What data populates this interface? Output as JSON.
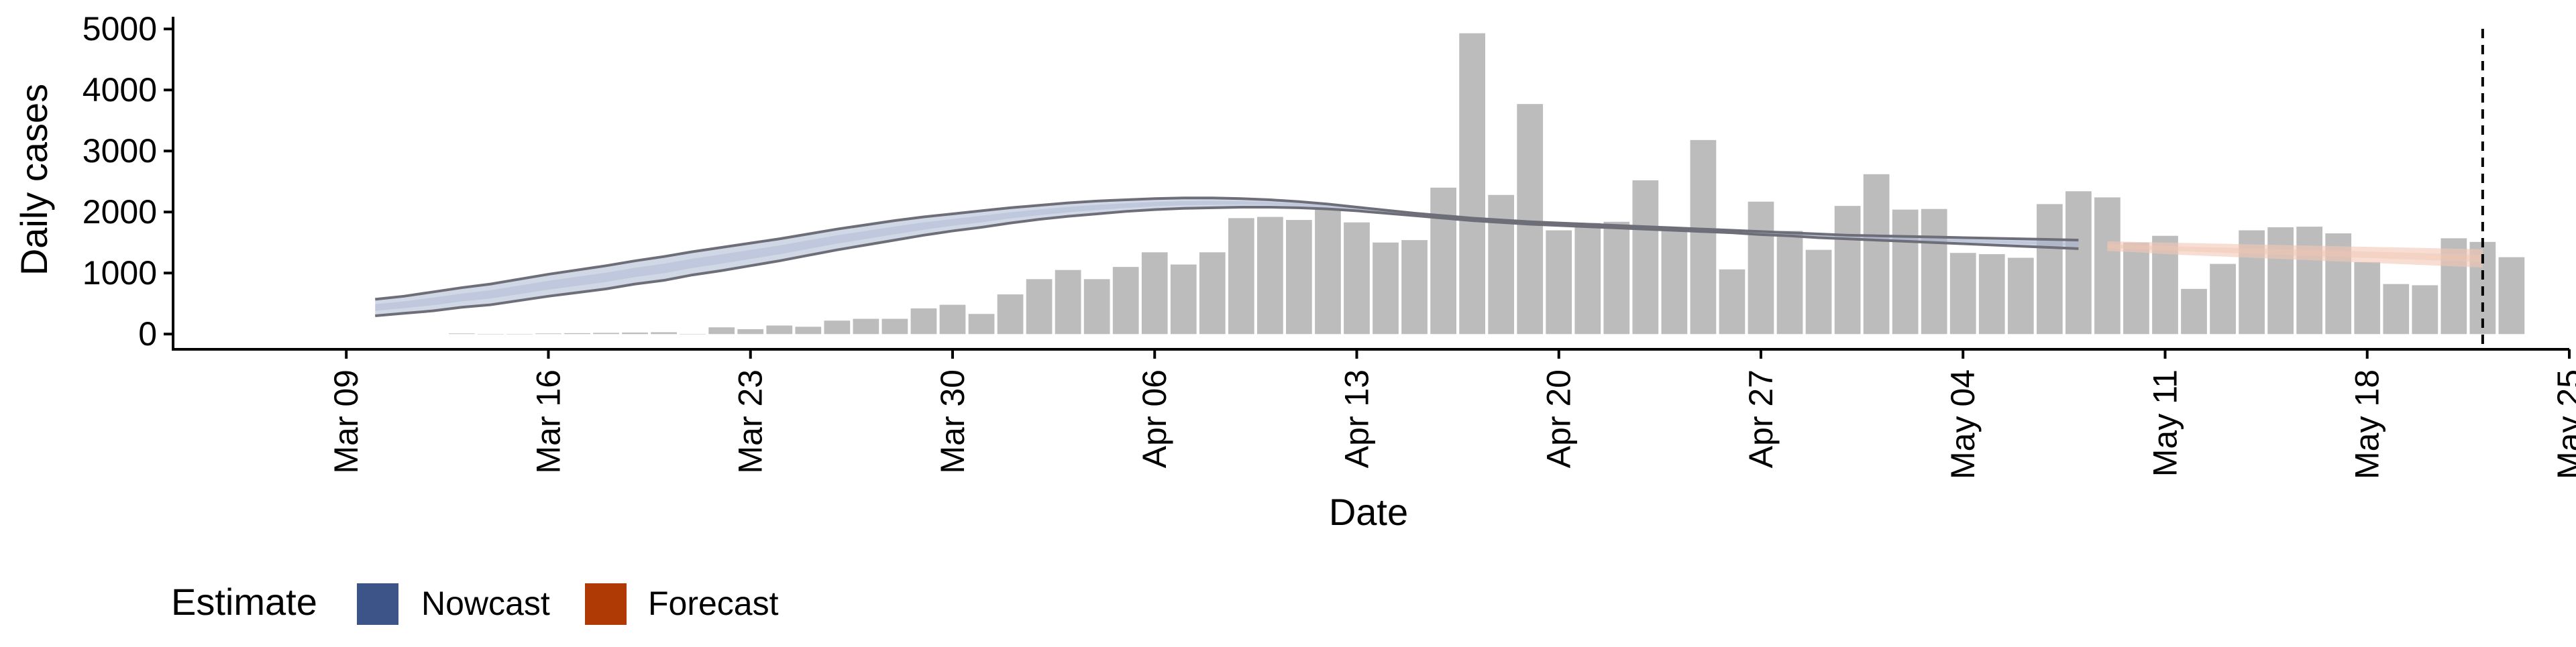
{
  "chart_data": {
    "type": "bar",
    "xlabel": "Date",
    "ylabel": "Daily cases",
    "ylim": [
      -250,
      5200
    ],
    "xlim": [
      "2020-03-03",
      "2020-05-25"
    ],
    "grid": false,
    "legend_position": "bottom-left",
    "x_ticks": [
      "2020-03-09",
      "2020-03-16",
      "2020-03-23",
      "2020-03-30",
      "2020-04-06",
      "2020-04-13",
      "2020-04-20",
      "2020-04-27",
      "2020-05-04",
      "2020-05-11",
      "2020-05-18",
      "2020-05-25"
    ],
    "x_tick_labels": [
      "Mar 09",
      "Mar 16",
      "Mar 23",
      "Mar 30",
      "Apr 06",
      "Apr 13",
      "Apr 20",
      "Apr 27",
      "May 04",
      "May 11",
      "May 18",
      "May 25"
    ],
    "y_ticks": [
      0,
      1000,
      2000,
      3000,
      4000,
      5000
    ],
    "y_tick_labels": [
      "0",
      "1000",
      "2000",
      "3000",
      "4000",
      "5000"
    ],
    "bar_color": "#bcbcbc",
    "bars": {
      "start_date": "2020-03-13",
      "values": [
        10,
        0,
        0,
        10,
        15,
        20,
        25,
        30,
        0,
        110,
        80,
        140,
        120,
        220,
        250,
        250,
        420,
        480,
        330,
        650,
        900,
        1050,
        900,
        1100,
        1340,
        1140,
        1340,
        1900,
        1920,
        1870,
        2050,
        1830,
        1500,
        1540,
        2400,
        4930,
        2280,
        3770,
        1700,
        1820,
        1840,
        2520,
        1740,
        3180,
        1060,
        2170,
        1690,
        1380,
        2100,
        2620,
        2040,
        2050,
        1330,
        1310,
        1250,
        2130,
        2340,
        2240,
        1500,
        1610,
        740,
        1150,
        1700,
        1750,
        1760,
        1650,
        1180,
        820,
        800,
        1570,
        1510,
        1260
      ]
    },
    "vline_date": "2020-05-22",
    "series": [
      {
        "name": "Nowcast",
        "color": "#3c5488",
        "band_color": "#aab6d0",
        "start_date": "2020-03-10",
        "lower": [
          300,
          340,
          380,
          440,
          480,
          550,
          620,
          680,
          740,
          820,
          880,
          970,
          1040,
          1120,
          1200,
          1290,
          1380,
          1460,
          1540,
          1620,
          1690,
          1750,
          1820,
          1880,
          1930,
          1970,
          2010,
          2040,
          2060,
          2070,
          2080,
          2080,
          2070,
          2050,
          2020,
          1980,
          1940,
          1900,
          1860,
          1830,
          1800,
          1780,
          1760,
          1740,
          1720,
          1700,
          1680,
          1660,
          1630,
          1610,
          1580,
          1560,
          1540,
          1520,
          1500,
          1480,
          1460,
          1440,
          1420,
          1400
        ],
        "upper": [
          570,
          620,
          690,
          760,
          820,
          900,
          980,
          1050,
          1120,
          1200,
          1270,
          1350,
          1420,
          1490,
          1560,
          1640,
          1720,
          1790,
          1860,
          1920,
          1970,
          2020,
          2070,
          2110,
          2150,
          2180,
          2200,
          2220,
          2230,
          2230,
          2220,
          2200,
          2170,
          2130,
          2080,
          2030,
          1980,
          1940,
          1900,
          1870,
          1840,
          1820,
          1800,
          1780,
          1760,
          1740,
          1720,
          1700,
          1680,
          1660,
          1640,
          1620,
          1610,
          1600,
          1590,
          1580,
          1570,
          1560,
          1550,
          1540
        ]
      },
      {
        "name": "Forecast",
        "color": "#b03a05",
        "band_color": "#f2c7b4",
        "start_date": "2020-05-09",
        "lower": [
          1360,
          1340,
          1310,
          1290,
          1270,
          1250,
          1230,
          1210,
          1190,
          1170,
          1150,
          1130,
          1110,
          1090
        ],
        "upper": [
          1520,
          1510,
          1500,
          1490,
          1480,
          1470,
          1460,
          1450,
          1440,
          1430,
          1420,
          1410,
          1400,
          1390
        ]
      }
    ],
    "legend": {
      "title": "Estimate",
      "items": [
        "Nowcast",
        "Forecast"
      ]
    }
  }
}
